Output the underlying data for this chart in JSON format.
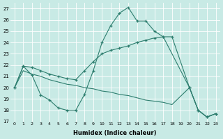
{
  "xlabel": "Humidex (Indice chaleur)",
  "bg_color": "#c8eae5",
  "grid_color": "#ffffff",
  "line_color": "#2d7d6e",
  "xlim": [
    -0.5,
    23.5
  ],
  "ylim": [
    17,
    27.5
  ],
  "yticks": [
    17,
    18,
    19,
    20,
    21,
    22,
    23,
    24,
    25,
    26,
    27
  ],
  "xticks": [
    0,
    1,
    2,
    3,
    4,
    5,
    6,
    7,
    8,
    9,
    10,
    11,
    12,
    13,
    14,
    15,
    16,
    17,
    18,
    19,
    20,
    21,
    22,
    23
  ],
  "line1_x": [
    0,
    1,
    2,
    3,
    4,
    5,
    6,
    7,
    8,
    9,
    10,
    11,
    12,
    13,
    14,
    15,
    16,
    17,
    20,
    21,
    22,
    23
  ],
  "line1_y": [
    20.0,
    21.9,
    21.1,
    19.35,
    18.9,
    18.2,
    18.0,
    18.0,
    19.4,
    21.5,
    24.0,
    25.5,
    26.6,
    27.1,
    25.9,
    25.9,
    25.0,
    24.5,
    20.0,
    18.0,
    17.4,
    17.7
  ],
  "line2_x": [
    0,
    1,
    2,
    3,
    4,
    5,
    6,
    7,
    8,
    9,
    10,
    11,
    12,
    13,
    14,
    15,
    16,
    17,
    18,
    20,
    21,
    22,
    23
  ],
  "line2_y": [
    20.0,
    21.9,
    21.8,
    21.5,
    21.2,
    21.0,
    20.8,
    20.7,
    21.5,
    22.3,
    23.0,
    23.3,
    23.5,
    23.7,
    24.0,
    24.2,
    24.4,
    24.5,
    24.5,
    20.0,
    18.0,
    17.4,
    17.7
  ],
  "line3_x": [
    0,
    1,
    2,
    3,
    4,
    5,
    6,
    7,
    8,
    9,
    10,
    11,
    12,
    13,
    14,
    15,
    16,
    17,
    18,
    20,
    21,
    22,
    23
  ],
  "line3_y": [
    20.0,
    21.5,
    21.2,
    21.0,
    20.7,
    20.5,
    20.3,
    20.2,
    20.0,
    19.9,
    19.7,
    19.6,
    19.4,
    19.3,
    19.1,
    18.9,
    18.8,
    18.7,
    18.5,
    20.0,
    18.0,
    17.4,
    17.7
  ]
}
